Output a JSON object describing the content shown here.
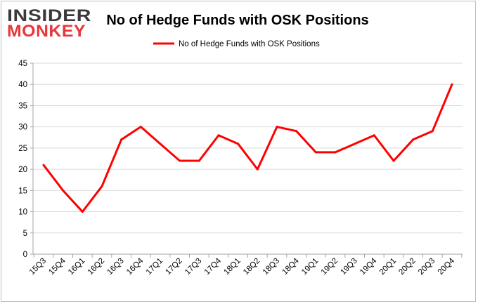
{
  "brand": {
    "line1": "INSIDER",
    "line2": "MONKEY",
    "color_dark": "#3a3a3a",
    "color_accent": "#e8363a"
  },
  "chart_data": {
    "type": "line",
    "title": "No of Hedge Funds with OSK Positions",
    "xlabel": "",
    "ylabel": "",
    "categories": [
      "15Q3",
      "15Q4",
      "16Q1",
      "16Q2",
      "16Q3",
      "16Q4",
      "17Q1",
      "17Q2",
      "17Q3",
      "17Q4",
      "18Q1",
      "18Q2",
      "18Q3",
      "18Q4",
      "19Q1",
      "19Q2",
      "19Q3",
      "19Q4",
      "20Q1",
      "20Q2",
      "20Q3",
      "20Q4"
    ],
    "series": [
      {
        "name": "No of Hedge Funds with OSK Positions",
        "color": "#ff0000",
        "values": [
          21,
          15,
          10,
          16,
          27,
          30,
          26,
          22,
          22,
          28,
          26,
          20,
          30,
          29,
          24,
          24,
          26,
          28,
          22,
          27,
          29,
          40
        ]
      }
    ],
    "ylim": [
      0,
      45
    ],
    "yticks": [
      0,
      5,
      10,
      15,
      20,
      25,
      30,
      35,
      40,
      45
    ],
    "grid": true,
    "legend": "top-center"
  }
}
